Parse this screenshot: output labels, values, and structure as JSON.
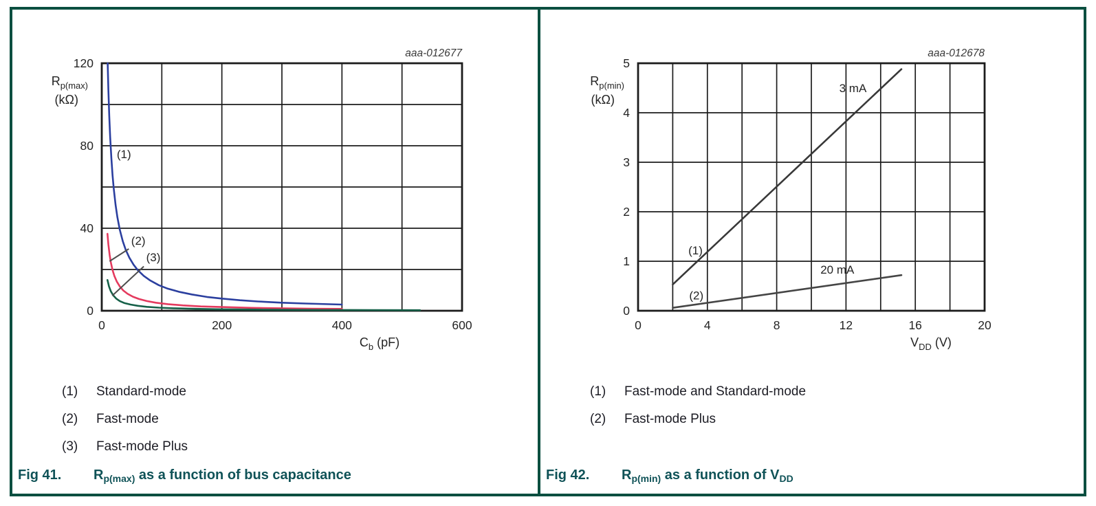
{
  "colors": {
    "frame": "#0b4f40",
    "caption": "#0f5257",
    "grid": "#1c1c1c",
    "text": "#242424",
    "plot_id": "#3a3a3a",
    "legend_text": "#1c1c24",
    "leader": "#4d4d4d",
    "standard_mode": "#2b3f9f",
    "fast_mode": "#e43a5e",
    "fast_mode_plus": "#156048",
    "line_3ma": "#383838",
    "line_20ma": "#454545"
  },
  "chart_data": [
    {
      "id": "fig41",
      "type": "line",
      "plot_label": "aaa-012677",
      "xlim": [
        0,
        600
      ],
      "ylim": [
        0,
        120
      ],
      "x_grid_step": 100,
      "y_grid_step": 20,
      "x_ticks": [
        0,
        200,
        400,
        600
      ],
      "y_ticks": [
        0,
        40,
        80,
        120
      ],
      "xlabel": [
        {
          "t": "C"
        },
        {
          "t": "b",
          "sub": true
        },
        {
          "t": " (pF)"
        }
      ],
      "ylabel_line1": [
        {
          "t": "R"
        },
        {
          "t": "p(max)",
          "sub": true
        }
      ],
      "ylabel_line2": "(kΩ)",
      "series": [
        {
          "name": "Standard-mode",
          "number": "(1)",
          "color": "#2b3f9f",
          "points": [
            [
              9.8,
              120
            ],
            [
              11,
              107.3
            ],
            [
              12.5,
              94.4
            ],
            [
              14,
              84.3
            ],
            [
              16,
              73.8
            ],
            [
              18,
              65.6
            ],
            [
              20,
              59
            ],
            [
              23,
              51.3
            ],
            [
              26,
              45.4
            ],
            [
              30,
              39.3
            ],
            [
              35,
              33.7
            ],
            [
              40,
              29.5
            ],
            [
              46,
              25.7
            ],
            [
              53,
              22.3
            ],
            [
              60,
              19.7
            ],
            [
              70,
              16.9
            ],
            [
              80,
              14.8
            ],
            [
              95,
              12.4
            ],
            [
              110,
              10.7
            ],
            [
              130,
              9.1
            ],
            [
              150,
              7.9
            ],
            [
              175,
              6.7
            ],
            [
              200,
              5.9
            ],
            [
              230,
              5.1
            ],
            [
              260,
              4.5
            ],
            [
              300,
              3.9
            ],
            [
              340,
              3.5
            ],
            [
              400,
              3.0
            ]
          ]
        },
        {
          "name": "Fast-mode",
          "number": "(2)",
          "color": "#e43a5e",
          "points": [
            [
              9.5,
              37.3
            ],
            [
              11,
              32.2
            ],
            [
              13,
              27.2
            ],
            [
              15,
              23.6
            ],
            [
              18,
              19.7
            ],
            [
              21,
              16.9
            ],
            [
              25,
              14.2
            ],
            [
              30,
              11.8
            ],
            [
              36,
              9.8
            ],
            [
              43,
              8.2
            ],
            [
              52,
              6.8
            ],
            [
              62,
              5.7
            ],
            [
              75,
              4.7
            ],
            [
              90,
              3.9
            ],
            [
              110,
              3.2
            ],
            [
              135,
              2.6
            ],
            [
              165,
              2.1
            ],
            [
              200,
              1.8
            ],
            [
              250,
              1.4
            ],
            [
              300,
              1.2
            ],
            [
              350,
              1.0
            ],
            [
              400,
              0.9
            ]
          ]
        },
        {
          "name": "Fast-mode Plus",
          "number": "(3)",
          "color": "#156048",
          "points": [
            [
              9.5,
              14.9
            ],
            [
              12,
              11.8
            ],
            [
              15,
              9.5
            ],
            [
              19,
              7.5
            ],
            [
              24,
              5.9
            ],
            [
              30,
              4.7
            ],
            [
              38,
              3.7
            ],
            [
              48,
              3.0
            ],
            [
              60,
              2.4
            ],
            [
              75,
              1.9
            ],
            [
              95,
              1.5
            ],
            [
              120,
              1.2
            ],
            [
              150,
              0.95
            ],
            [
              190,
              0.75
            ],
            [
              240,
              0.6
            ],
            [
              300,
              0.47
            ],
            [
              380,
              0.37
            ],
            [
              450,
              0.32
            ],
            [
              530,
              0.27
            ]
          ]
        }
      ],
      "annotations": [
        {
          "text": "(1)",
          "x": 25,
          "y": 76
        },
        {
          "text": "(2)",
          "x": 49,
          "y": 34,
          "leader": [
            45,
            30,
            13,
            24
          ]
        },
        {
          "text": "(3)",
          "x": 74,
          "y": 26,
          "leader": [
            70,
            21.5,
            17.5,
            7.3
          ]
        }
      ],
      "legend": [
        {
          "num": "(1)",
          "label": "Standard-mode"
        },
        {
          "num": "(2)",
          "label": "Fast-mode"
        },
        {
          "num": "(3)",
          "label": "Fast-mode Plus"
        }
      ],
      "caption": {
        "label": "Fig 41.",
        "segments": [
          {
            "t": "R"
          },
          {
            "t": "p(max)",
            "sub": true
          },
          {
            "t": " as a function of bus capacitance"
          }
        ]
      }
    },
    {
      "id": "fig42",
      "type": "line",
      "plot_label": "aaa-012678",
      "xlim": [
        0,
        20
      ],
      "ylim": [
        0,
        5
      ],
      "x_grid_step": 2,
      "y_grid_step": 1,
      "x_ticks": [
        0,
        4,
        8,
        12,
        16,
        20
      ],
      "y_ticks": [
        0,
        1,
        2,
        3,
        4,
        5
      ],
      "xlabel": [
        {
          "t": "V"
        },
        {
          "t": "DD",
          "sub": true
        },
        {
          "t": " (V)"
        }
      ],
      "ylabel_line1": [
        {
          "t": "R"
        },
        {
          "t": "p(min)",
          "sub": true
        }
      ],
      "ylabel_line2": "(kΩ)",
      "series": [
        {
          "name": "3 mA",
          "number": "(1)",
          "color": "#383838",
          "points": [
            [
              2,
              0.53
            ],
            [
              15.2,
              4.88
            ]
          ]
        },
        {
          "name": "20 mA",
          "number": "(2)",
          "color": "#454545",
          "points": [
            [
              2,
              0.06
            ],
            [
              15.2,
              0.72
            ]
          ]
        }
      ],
      "annotations": [
        {
          "text": "3 mA",
          "x": 12.4,
          "y": 4.5,
          "anchor": "middle"
        },
        {
          "text": "(1)",
          "x": 2.9,
          "y": 1.22
        },
        {
          "text": "20 mA",
          "x": 11.5,
          "y": 0.83,
          "anchor": "middle"
        },
        {
          "text": "(2)",
          "x": 2.95,
          "y": 0.31
        }
      ],
      "legend": [
        {
          "num": "(1)",
          "label": "Fast-mode and Standard-mode"
        },
        {
          "num": "(2)",
          "label": "Fast-mode Plus"
        }
      ],
      "caption": {
        "label": "Fig 42.",
        "segments": [
          {
            "t": "R"
          },
          {
            "t": "p(min)",
            "sub": true
          },
          {
            "t": " as a function of V"
          },
          {
            "t": "DD",
            "sub": true
          }
        ]
      }
    }
  ]
}
